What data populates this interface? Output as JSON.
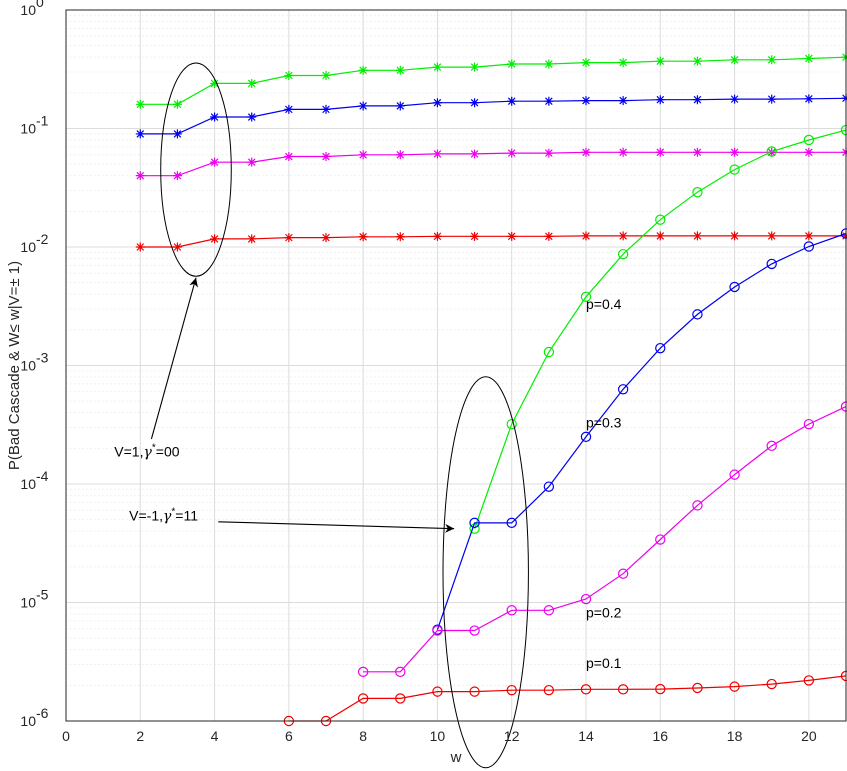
{
  "chart_data": {
    "type": "line",
    "xlabel": "w",
    "ylabel": "P(Bad Cascade & W≤ w|V=± 1)",
    "xlim": [
      0,
      21
    ],
    "ylim": [
      1e-06,
      1
    ],
    "yscale": "log",
    "xticks": [
      0,
      2,
      4,
      6,
      8,
      10,
      12,
      14,
      16,
      18,
      20
    ],
    "yticks": [
      {
        "base": "10",
        "exp": "-6"
      },
      {
        "base": "10",
        "exp": "-5"
      },
      {
        "base": "10",
        "exp": "-4"
      },
      {
        "base": "10",
        "exp": "-3"
      },
      {
        "base": "10",
        "exp": "-2"
      },
      {
        "base": "10",
        "exp": "-1"
      },
      {
        "base": "10",
        "exp": "0"
      }
    ],
    "grid": true,
    "series": [
      {
        "color": "#00ee00",
        "marker": "star",
        "x": [
          2,
          3,
          4,
          5,
          6,
          7,
          8,
          9,
          10,
          11,
          12,
          13,
          14,
          15,
          16,
          17,
          18,
          19,
          20,
          21
        ],
        "y": [
          0.16,
          0.16,
          0.24,
          0.24,
          0.28,
          0.28,
          0.31,
          0.31,
          0.33,
          0.33,
          0.35,
          0.35,
          0.36,
          0.36,
          0.37,
          0.37,
          0.38,
          0.38,
          0.39,
          0.4
        ]
      },
      {
        "color": "#0000ee",
        "marker": "star",
        "x": [
          2,
          3,
          4,
          5,
          6,
          7,
          8,
          9,
          10,
          11,
          12,
          13,
          14,
          15,
          16,
          17,
          18,
          19,
          20,
          21
        ],
        "y": [
          0.09,
          0.09,
          0.125,
          0.125,
          0.145,
          0.145,
          0.155,
          0.155,
          0.165,
          0.165,
          0.17,
          0.17,
          0.172,
          0.172,
          0.175,
          0.175,
          0.177,
          0.177,
          0.178,
          0.18
        ]
      },
      {
        "color": "#ee00ee",
        "marker": "star",
        "x": [
          2,
          3,
          4,
          5,
          6,
          7,
          8,
          9,
          10,
          11,
          12,
          13,
          14,
          15,
          16,
          17,
          18,
          19,
          20,
          21
        ],
        "y": [
          0.04,
          0.04,
          0.052,
          0.052,
          0.058,
          0.058,
          0.06,
          0.06,
          0.061,
          0.061,
          0.062,
          0.062,
          0.063,
          0.063,
          0.063,
          0.063,
          0.063,
          0.063,
          0.063,
          0.063
        ]
      },
      {
        "color": "#ee0000",
        "marker": "star",
        "x": [
          2,
          3,
          4,
          5,
          6,
          7,
          8,
          9,
          10,
          11,
          12,
          13,
          14,
          15,
          16,
          17,
          18,
          19,
          20,
          21
        ],
        "y": [
          0.01,
          0.01,
          0.0117,
          0.0117,
          0.012,
          0.012,
          0.0122,
          0.0122,
          0.0123,
          0.0123,
          0.0123,
          0.0123,
          0.0124,
          0.0124,
          0.0124,
          0.0124,
          0.0124,
          0.0124,
          0.0124,
          0.0124
        ]
      },
      {
        "color": "#00ee00",
        "marker": "circle",
        "x": [
          11,
          12,
          13,
          14,
          15,
          16,
          17,
          18,
          19,
          20,
          21
        ],
        "y": [
          4.2e-05,
          0.00032,
          0.0013,
          0.0038,
          0.0087,
          0.017,
          0.029,
          0.045,
          0.064,
          0.08,
          0.097
        ]
      },
      {
        "color": "#0000ee",
        "marker": "circle",
        "x": [
          10,
          11,
          12,
          13,
          14,
          15,
          16,
          17,
          18,
          19,
          20,
          21
        ],
        "y": [
          5.9e-06,
          4.7e-05,
          4.7e-05,
          9.5e-05,
          0.00025,
          0.00063,
          0.0014,
          0.0027,
          0.0046,
          0.0072,
          0.0101,
          0.013
        ]
      },
      {
        "color": "#ee00ee",
        "marker": "circle",
        "x": [
          8,
          9,
          10,
          11,
          12,
          13,
          14,
          15,
          16,
          17,
          18,
          19,
          20,
          21
        ],
        "y": [
          2.6e-06,
          2.6e-06,
          5.8e-06,
          5.8e-06,
          8.6e-06,
          8.6e-06,
          1.07e-05,
          1.75e-05,
          3.4e-05,
          6.6e-05,
          0.00012,
          0.00021,
          0.00032,
          0.00045
        ]
      },
      {
        "color": "#ee0000",
        "marker": "circle",
        "x": [
          6,
          7,
          8,
          9,
          10,
          11,
          12,
          13,
          14,
          15,
          16,
          17,
          18,
          19,
          20,
          21
        ],
        "y": [
          1e-06,
          1e-06,
          1.55e-06,
          1.55e-06,
          1.77e-06,
          1.77e-06,
          1.82e-06,
          1.82e-06,
          1.85e-06,
          1.85e-06,
          1.86e-06,
          1.9e-06,
          1.95e-06,
          2.05e-06,
          2.2e-06,
          2.4e-06
        ]
      }
    ],
    "series_labels": [
      {
        "text": "p=0.4",
        "x": 14.0,
        "y": 0.003
      },
      {
        "text": "p=0.3",
        "x": 14.0,
        "y": 0.0003
      },
      {
        "text": "p=0.2",
        "x": 14.0,
        "y": 7.5e-06
      },
      {
        "text": "p=0.1",
        "x": 14.0,
        "y": 2.8e-06
      }
    ],
    "annotations": [
      {
        "name": "annotation-v1",
        "prefix": "V=1,",
        "gamma": "γ",
        "sup": "*",
        "suffix": "=00",
        "text_x": 1.3,
        "text_y": 0.00017,
        "arrow_from": [
          2.3,
          0.00024
        ],
        "arrow_to": [
          3.5,
          0.0055
        ],
        "ellipse_center": [
          3.5,
          0.045
        ],
        "ellipse_half_width": 0.95,
        "ellipse_log_half_height": 0.9
      },
      {
        "name": "annotation-vminus1",
        "prefix": "V=-1,",
        "gamma": "γ",
        "sup": "*",
        "suffix": "=11",
        "text_x": 1.7,
        "text_y": 4.9e-05,
        "arrow_from": [
          4.1,
          4.8e-05
        ],
        "arrow_to": [
          10.45,
          4.2e-05
        ],
        "ellipse_center": [
          11.3,
          1.8e-05
        ],
        "ellipse_half_width": 1.15,
        "ellipse_log_half_height": 1.65
      }
    ]
  }
}
